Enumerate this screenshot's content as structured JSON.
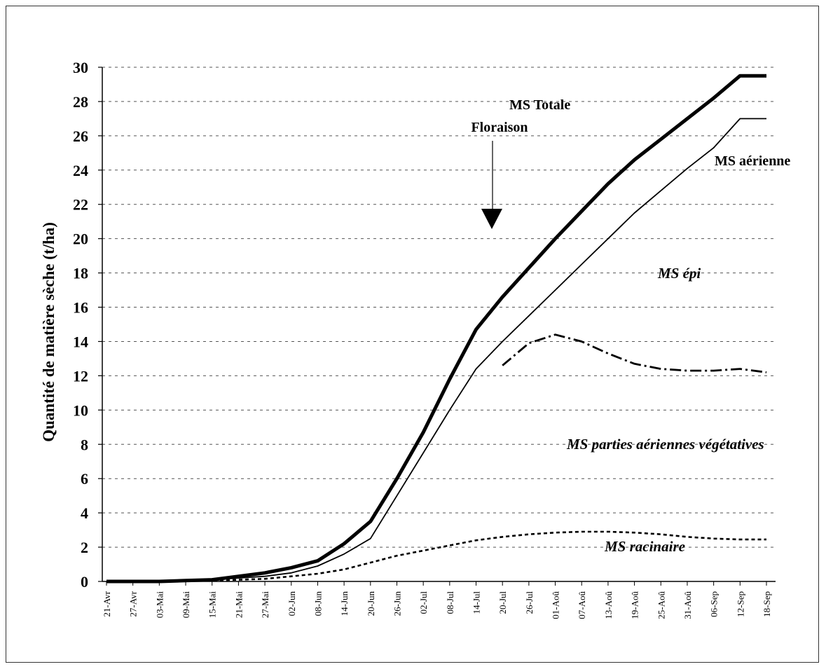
{
  "chart_data": {
    "type": "line",
    "title": "",
    "xlabel": "",
    "ylabel": "Quantité de matière sèche (t/ha)",
    "ylim": [
      0,
      30
    ],
    "yticks": [
      0,
      2,
      4,
      6,
      8,
      10,
      12,
      14,
      16,
      18,
      20,
      22,
      24,
      26,
      28,
      30
    ],
    "grid": "horizontal dashed",
    "categories": [
      "21-Avr",
      "27-Avr",
      "03-Mai",
      "09-Mai",
      "15-Mai",
      "21-Mai",
      "27-Mai",
      "02-Jun",
      "08-Jun",
      "14-Jun",
      "20-Jun",
      "26-Jun",
      "02-Jul",
      "08-Jul",
      "14-Jul",
      "20-Jul",
      "26-Jul",
      "01-Aoû",
      "07-Aoû",
      "13-Aoû",
      "19-Aoû",
      "25-Aoû",
      "31-Aoû",
      "06-Sep",
      "12-Sep",
      "18-Sep"
    ],
    "series": [
      {
        "name": "MS Totale",
        "style": "thick-solid",
        "x": [
          "21-Avr",
          "27-Avr",
          "03-Mai",
          "09-Mai",
          "15-Mai",
          "21-Mai",
          "27-Mai",
          "02-Jun",
          "08-Jun",
          "14-Jun",
          "20-Jun",
          "26-Jun",
          "02-Jul",
          "08-Jul",
          "14-Jul",
          "20-Jul",
          "26-Jul",
          "01-Aoû",
          "07-Aoû",
          "13-Aoû",
          "19-Aoû",
          "25-Aoû",
          "31-Aoû",
          "06-Sep",
          "12-Sep",
          "18-Sep"
        ],
        "values": [
          0,
          0,
          0,
          0.05,
          0.1,
          0.3,
          0.5,
          0.8,
          1.2,
          2.2,
          3.5,
          6.0,
          8.7,
          11.8,
          14.7,
          16.6,
          18.3,
          20.0,
          21.6,
          23.2,
          24.6,
          25.8,
          27.0,
          28.2,
          29.5,
          29.5
        ]
      },
      {
        "name": "MS aérienne",
        "style": "thin-solid",
        "x": [
          "21-Avr",
          "27-Avr",
          "03-Mai",
          "09-Mai",
          "15-Mai",
          "21-Mai",
          "27-Mai",
          "02-Jun",
          "08-Jun",
          "14-Jun",
          "20-Jun",
          "26-Jun",
          "02-Jul",
          "08-Jul",
          "14-Jul",
          "20-Jul",
          "26-Jul",
          "01-Aoû",
          "07-Aoû",
          "13-Aoû",
          "19-Aoû",
          "25-Aoû",
          "31-Aoû",
          "06-Sep",
          "12-Sep",
          "18-Sep"
        ],
        "values": [
          0,
          0,
          0,
          0.03,
          0.08,
          0.2,
          0.3,
          0.5,
          0.9,
          1.6,
          2.5,
          5.0,
          7.5,
          10.0,
          12.4,
          14.0,
          15.5,
          17.0,
          18.5,
          20.0,
          21.5,
          22.8,
          24.1,
          25.3,
          27.0,
          27.0
        ]
      },
      {
        "name": "MS épi",
        "style": "dash-dot",
        "x": [
          "20-Jul",
          "26-Jul",
          "01-Aoû",
          "07-Aoû",
          "13-Aoû",
          "19-Aoû",
          "25-Aoû",
          "31-Aoû",
          "06-Sep",
          "12-Sep",
          "18-Sep"
        ],
        "values": [
          12.6,
          13.9,
          14.4,
          14.0,
          13.3,
          12.7,
          12.4,
          12.3,
          12.3,
          12.4,
          12.2
        ]
      },
      {
        "name": "MS racinaire",
        "style": "dotted",
        "x": [
          "21-Avr",
          "27-Avr",
          "03-Mai",
          "09-Mai",
          "15-Mai",
          "21-Mai",
          "27-Mai",
          "02-Jun",
          "08-Jun",
          "14-Jun",
          "20-Jun",
          "26-Jun",
          "02-Jul",
          "08-Jul",
          "14-Jul",
          "20-Jul",
          "26-Jul",
          "01-Aoû",
          "07-Aoû",
          "13-Aoû",
          "19-Aoû",
          "25-Aoû",
          "31-Aoû",
          "06-Sep",
          "12-Sep",
          "18-Sep"
        ],
        "values": [
          0,
          0,
          0,
          0.02,
          0.05,
          0.1,
          0.15,
          0.3,
          0.45,
          0.7,
          1.1,
          1.5,
          1.8,
          2.1,
          2.4,
          2.6,
          2.75,
          2.85,
          2.9,
          2.9,
          2.85,
          2.75,
          2.6,
          2.5,
          2.45,
          2.45
        ]
      }
    ],
    "annotations": {
      "floraison_label": "Floraison",
      "floraison_date": "20-Jul",
      "ms_totale_label": "MS Totale",
      "ms_aerienne_label": "MS aérienne",
      "ms_epi_label": "MS épi",
      "ms_vegetatives_label": "MS parties aériennes végétatives",
      "ms_racinaire_label": "MS racinaire"
    }
  }
}
